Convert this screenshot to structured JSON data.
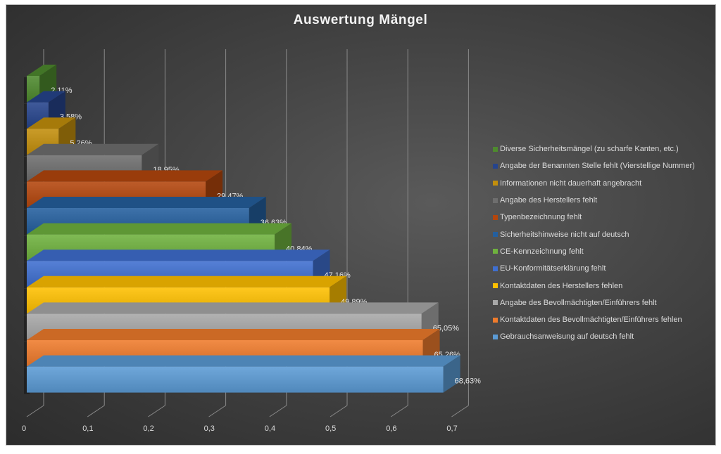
{
  "chart_data": {
    "type": "bar",
    "orientation": "horizontal",
    "style": "3d",
    "title": "Auswertung Mängel",
    "xlabel": "",
    "ylabel": "",
    "xlim": [
      0,
      0.7
    ],
    "x_ticks": [
      "0",
      "0,1",
      "0,2",
      "0,3",
      "0,4",
      "0,5",
      "0,6",
      "0,7"
    ],
    "x_tick_values": [
      0,
      0.1,
      0.2,
      0.3,
      0.4,
      0.5,
      0.6,
      0.7
    ],
    "grid": true,
    "legend_position": "right",
    "categories": [
      "Diverse Sicherheitsmängel (zu scharfe Kanten, etc.)",
      "Angabe der Benannten Stelle fehlt (Vierstellige Nummer)",
      "Informationen nicht dauerhaft angebracht",
      "Angabe des Herstellers fehlt",
      "Typenbezeichnung fehlt",
      "Sicherheitshinweise nicht auf deutsch",
      "CE-Kennzeichnung fehlt",
      "EU-Konformitätserklärung fehlt",
      "Kontaktdaten des Herstellers fehlen",
      "Angabe des Bevollmächtigten/Einführers fehlt",
      "Kontaktdaten des Bevollmächtigten/Einführers fehlen",
      "Gebrauchsanweisung auf deutsch fehlt"
    ],
    "values": [
      0.0211,
      0.0358,
      0.0526,
      0.1895,
      0.2947,
      0.3663,
      0.4084,
      0.4716,
      0.4989,
      0.6505,
      0.6526,
      0.6863
    ],
    "data_labels": [
      "2,11%",
      "3,58%",
      "5,26%",
      "18,95%",
      "29,47%",
      "36,63%",
      "40,84%",
      "47,16%",
      "49,89%",
      "65,05%",
      "65,26%",
      "68,63%"
    ],
    "colors": [
      "#4e8a2e",
      "#26448c",
      "#c38f0c",
      "#6e6e6e",
      "#b4460d",
      "#245f9e",
      "#6fb23e",
      "#3f6fd0",
      "#ffc000",
      "#a8a8a8",
      "#ef7b2c",
      "#5b9bd5"
    ]
  }
}
